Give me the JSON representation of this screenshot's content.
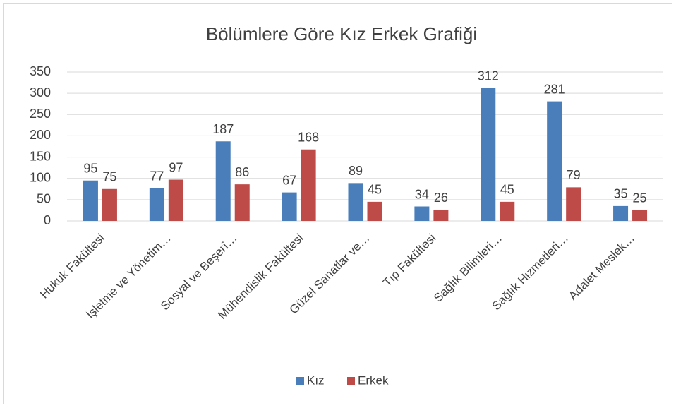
{
  "chart_data": {
    "type": "bar",
    "title": "Bölümlere Göre Kız Erkek Grafiği",
    "categories": [
      "Hukuk Fakültesi",
      "İşletme ve Yönetim…",
      "Sosyal ve Beşerî…",
      "Mühendislik Fakültesi",
      "Güzel Sanatlar ve…",
      "Tıp Fakültesi",
      "Sağlık Bilimleri…",
      "Sağlık Hizmetleri…",
      "Adalet Meslek…"
    ],
    "series": [
      {
        "name": "Kız",
        "color": "#4a7ebb",
        "values": [
          95,
          77,
          187,
          67,
          89,
          34,
          312,
          281,
          35
        ]
      },
      {
        "name": "Erkek",
        "color": "#be4b48",
        "values": [
          75,
          97,
          86,
          168,
          45,
          26,
          45,
          79,
          25
        ]
      }
    ],
    "ylim": [
      0,
      350
    ],
    "yticks": [
      0,
      50,
      100,
      150,
      200,
      250,
      300,
      350
    ],
    "grid": true,
    "legend": "bottom"
  }
}
